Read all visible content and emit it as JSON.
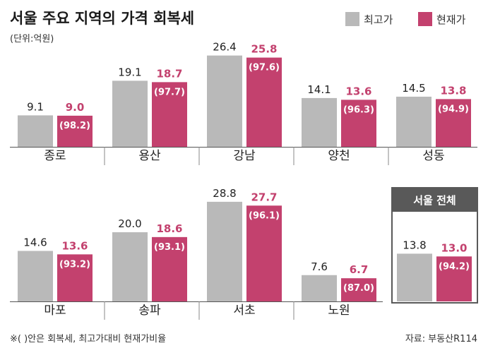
{
  "header": {
    "title": "서울 주요 지역의 가격 회복세",
    "unit": "(단위:억원)"
  },
  "legend": [
    {
      "label": "최고가",
      "color": "#b9b9b9"
    },
    {
      "label": "현재가",
      "color": "#c3416e"
    }
  ],
  "footer": {
    "note": "※(   )안은 회복세, 최고가대비 현재가비율",
    "source": "자료: 부동산R114"
  },
  "chart_data": {
    "type": "bar",
    "title": "서울 주요 지역의 가격 회복세",
    "unit": "억원",
    "series": [
      {
        "name": "최고가",
        "color": "#b9b9b9"
      },
      {
        "name": "현재가",
        "color": "#c3416e"
      }
    ],
    "panels": [
      {
        "categories": [
          {
            "name": "종로",
            "peak": 9.1,
            "current": 9.0,
            "peak_label": "9.1",
            "current_label": "9.0",
            "ratio": "(98.2)"
          },
          {
            "name": "용산",
            "peak": 19.1,
            "current": 18.7,
            "peak_label": "19.1",
            "current_label": "18.7",
            "ratio": "(97.7)"
          },
          {
            "name": "강남",
            "peak": 26.4,
            "current": 25.8,
            "peak_label": "26.4",
            "current_label": "25.8",
            "ratio": "(97.6)"
          },
          {
            "name": "양천",
            "peak": 14.1,
            "current": 13.6,
            "peak_label": "14.1",
            "current_label": "13.6",
            "ratio": "(96.3)"
          },
          {
            "name": "성동",
            "peak": 14.5,
            "current": 13.8,
            "peak_label": "14.5",
            "current_label": "13.8",
            "ratio": "(94.9)"
          }
        ]
      },
      {
        "categories": [
          {
            "name": "마포",
            "peak": 14.6,
            "current": 13.6,
            "peak_label": "14.6",
            "current_label": "13.6",
            "ratio": "(93.2)"
          },
          {
            "name": "송파",
            "peak": 20.0,
            "current": 18.6,
            "peak_label": "20.0",
            "current_label": "18.6",
            "ratio": "(93.1)"
          },
          {
            "name": "서초",
            "peak": 28.8,
            "current": 27.7,
            "peak_label": "28.8",
            "current_label": "27.7",
            "ratio": "(96.1)"
          },
          {
            "name": "노원",
            "peak": 7.6,
            "current": 6.7,
            "peak_label": "7.6",
            "current_label": "6.7",
            "ratio": "(87.0)"
          }
        ],
        "highlight": {
          "title": "서울 전체",
          "peak": 13.8,
          "current": 13.0,
          "peak_label": "13.8",
          "current_label": "13.0",
          "ratio": "(94.2)"
        }
      }
    ]
  }
}
